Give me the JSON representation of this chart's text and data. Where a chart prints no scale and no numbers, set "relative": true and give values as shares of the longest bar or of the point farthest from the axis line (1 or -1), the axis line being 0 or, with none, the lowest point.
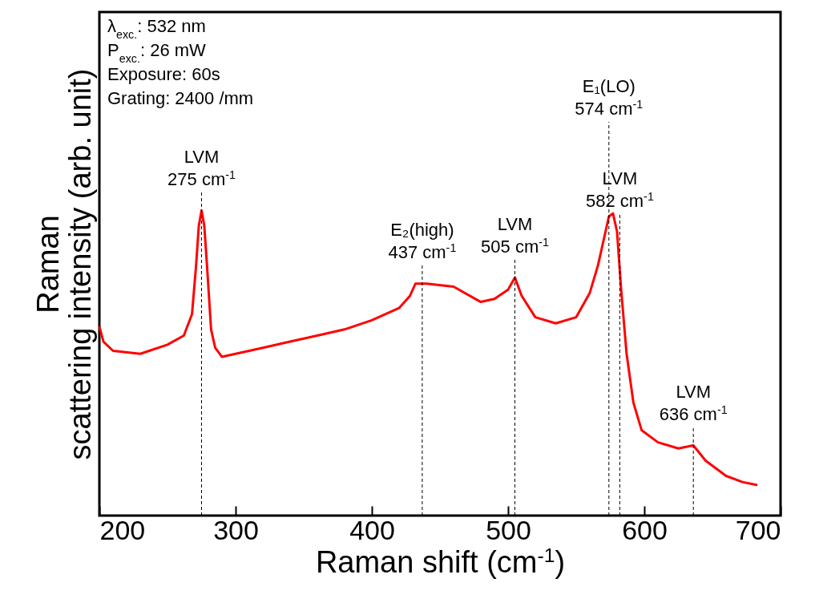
{
  "chart_data": {
    "type": "line",
    "xlabel": "Raman shift (cm$^{-1}$)",
    "ylabel": "Raman\nscattering intensity (arb. unit)",
    "relative": true,
    "xlim": [
      200,
      700
    ],
    "xticks": [
      200,
      300,
      400,
      500,
      600,
      700
    ],
    "x": [
      200,
      203,
      210,
      230,
      250,
      262,
      268,
      271,
      273,
      275,
      277,
      279,
      282,
      285,
      290,
      300,
      320,
      340,
      360,
      380,
      400,
      420,
      428,
      432,
      440,
      460,
      480,
      490,
      500,
      505,
      510,
      520,
      535,
      550,
      560,
      566,
      570,
      574,
      577,
      580,
      583,
      587,
      592,
      598,
      610,
      625,
      636,
      645,
      660,
      672,
      683
    ],
    "series": [
      {
        "color": "#ff0000",
        "values": [
          0.62,
          0.57,
          0.54,
          0.53,
          0.56,
          0.59,
          0.66,
          0.82,
          0.95,
          1.0,
          0.95,
          0.82,
          0.61,
          0.55,
          0.52,
          0.53,
          0.55,
          0.57,
          0.59,
          0.61,
          0.64,
          0.68,
          0.72,
          0.76,
          0.76,
          0.75,
          0.7,
          0.71,
          0.74,
          0.78,
          0.72,
          0.65,
          0.63,
          0.65,
          0.73,
          0.82,
          0.9,
          0.98,
          0.99,
          0.93,
          0.74,
          0.53,
          0.37,
          0.28,
          0.24,
          0.22,
          0.23,
          0.18,
          0.13,
          0.11,
          0.1
        ]
      }
    ],
    "ref_lines": [
      {
        "axis": "x",
        "value": 275,
        "label": "LVM\n275 cm$^{-1}$",
        "line_style": "dashed",
        "color": "#000000"
      },
      {
        "axis": "x",
        "value": 437,
        "label": "E₂(high)\n437 cm$^{-1}$",
        "line_style": "dashed",
        "color": "#000000"
      },
      {
        "axis": "x",
        "value": 505,
        "label": "LVM\n505 cm$^{-1}$",
        "line_style": "dashed",
        "color": "#000000"
      },
      {
        "axis": "x",
        "value": 574,
        "label": "E₁(LO)\n574 cm$^{-1}$",
        "line_style": "dashed",
        "color": "#000000"
      },
      {
        "axis": "x",
        "value": 582,
        "label": "LVM\n582 cm$^{-1}$",
        "line_style": "dashed",
        "color": "#000000"
      },
      {
        "axis": "x",
        "value": 636,
        "label": "LVM\n636 cm$^{-1}$",
        "line_style": "dashed",
        "color": "#000000"
      }
    ],
    "annotations": [
      "λ$_{exc.}$: 532 nm",
      "P$_{exc.}$: 26 mW",
      "Exposure: 60s",
      "Grating: 2400 /mm"
    ]
  }
}
